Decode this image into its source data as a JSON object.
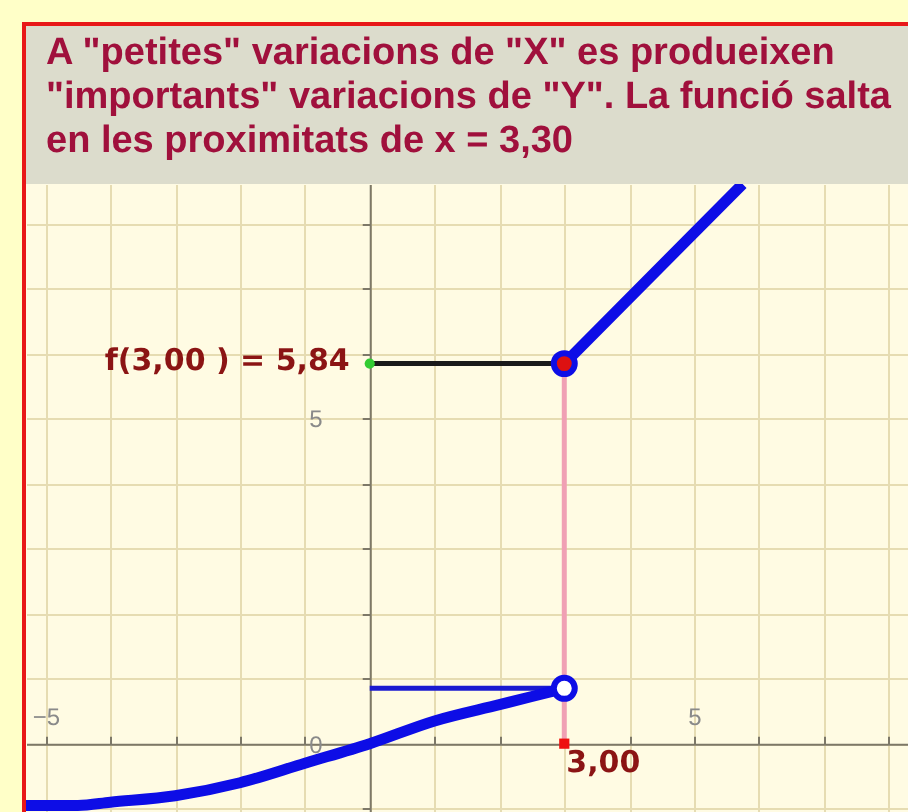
{
  "chart_data": {
    "type": "line",
    "title": "A \"petites\" variacions de \"X\" es produeixen \"importants\" variacions de \"Y\". La funció salta en les proximitats de x = 3,30",
    "xlim": [
      -5.3,
      8.3
    ],
    "ylim": [
      -1.05,
      8.6
    ],
    "xticks": [
      -5,
      {
        "value": -4,
        "label": null
      },
      {
        "value": -3,
        "label": null
      },
      {
        "value": -2,
        "label": null
      },
      {
        "value": -1,
        "label": null
      },
      {
        "value": 0,
        "label": null
      },
      {
        "value": 1,
        "label": null
      },
      {
        "value": 2,
        "label": null
      },
      {
        "value": 3,
        "label": null
      },
      {
        "value": 4,
        "label": null
      },
      5,
      {
        "value": 6,
        "label": null
      },
      {
        "value": 7,
        "label": null
      },
      {
        "value": 8,
        "label": null
      }
    ],
    "yticks": [
      {
        "value": -1,
        "label": null
      },
      0,
      {
        "value": 1,
        "label": null
      },
      {
        "value": 2,
        "label": null
      },
      {
        "value": 3,
        "label": null
      },
      {
        "value": 4,
        "label": null
      },
      5,
      {
        "value": 6,
        "label": null
      },
      {
        "value": 7,
        "label": null
      },
      {
        "value": 8,
        "label": null
      }
    ],
    "grid": true,
    "series": [
      {
        "color": "#1a1ad0",
        "x": [
          0,
          3
        ],
        "values": [
          0.85,
          0.85
        ]
      },
      {
        "color": "#1a1a1a",
        "x": [
          0,
          3
        ],
        "values": [
          5.84,
          5.84
        ]
      },
      {
        "color": "#f0a0b4",
        "x": [
          3,
          3
        ],
        "values": [
          0,
          5.84
        ]
      },
      {
        "color": "#0d0de6",
        "x": [
          -5.3,
          -4.5,
          -4,
          -3,
          -2,
          -1,
          0,
          1,
          2,
          3,
          null,
          3,
          5.75
        ],
        "values": [
          -0.95,
          -0.95,
          -0.9,
          -0.8,
          -0.6,
          -0.3,
          0,
          0.35,
          0.6,
          0.85,
          null,
          5.84,
          8.6
        ]
      },
      {
        "type": "scatter",
        "marker": "circle",
        "color": "#ffffff",
        "x": [
          3
        ],
        "values": [
          0.85
        ]
      },
      {
        "type": "scatter",
        "marker": "circle",
        "color": "#dd1111",
        "x": [
          3
        ],
        "values": [
          5.84
        ]
      },
      {
        "type": "scatter",
        "marker": "circle",
        "color": "#33cc33",
        "x": [
          0
        ],
        "values": [
          5.84
        ]
      },
      {
        "type": "scatter",
        "marker": "square",
        "color": "#ee1111",
        "x": [
          3
        ],
        "values": [
          0
        ]
      }
    ],
    "annotations": [
      {
        "text": "f(3,00 ) = 5,84",
        "x": 0,
        "y": 5.84
      },
      {
        "text": "3,00",
        "x": 3,
        "y": 0
      }
    ]
  }
}
